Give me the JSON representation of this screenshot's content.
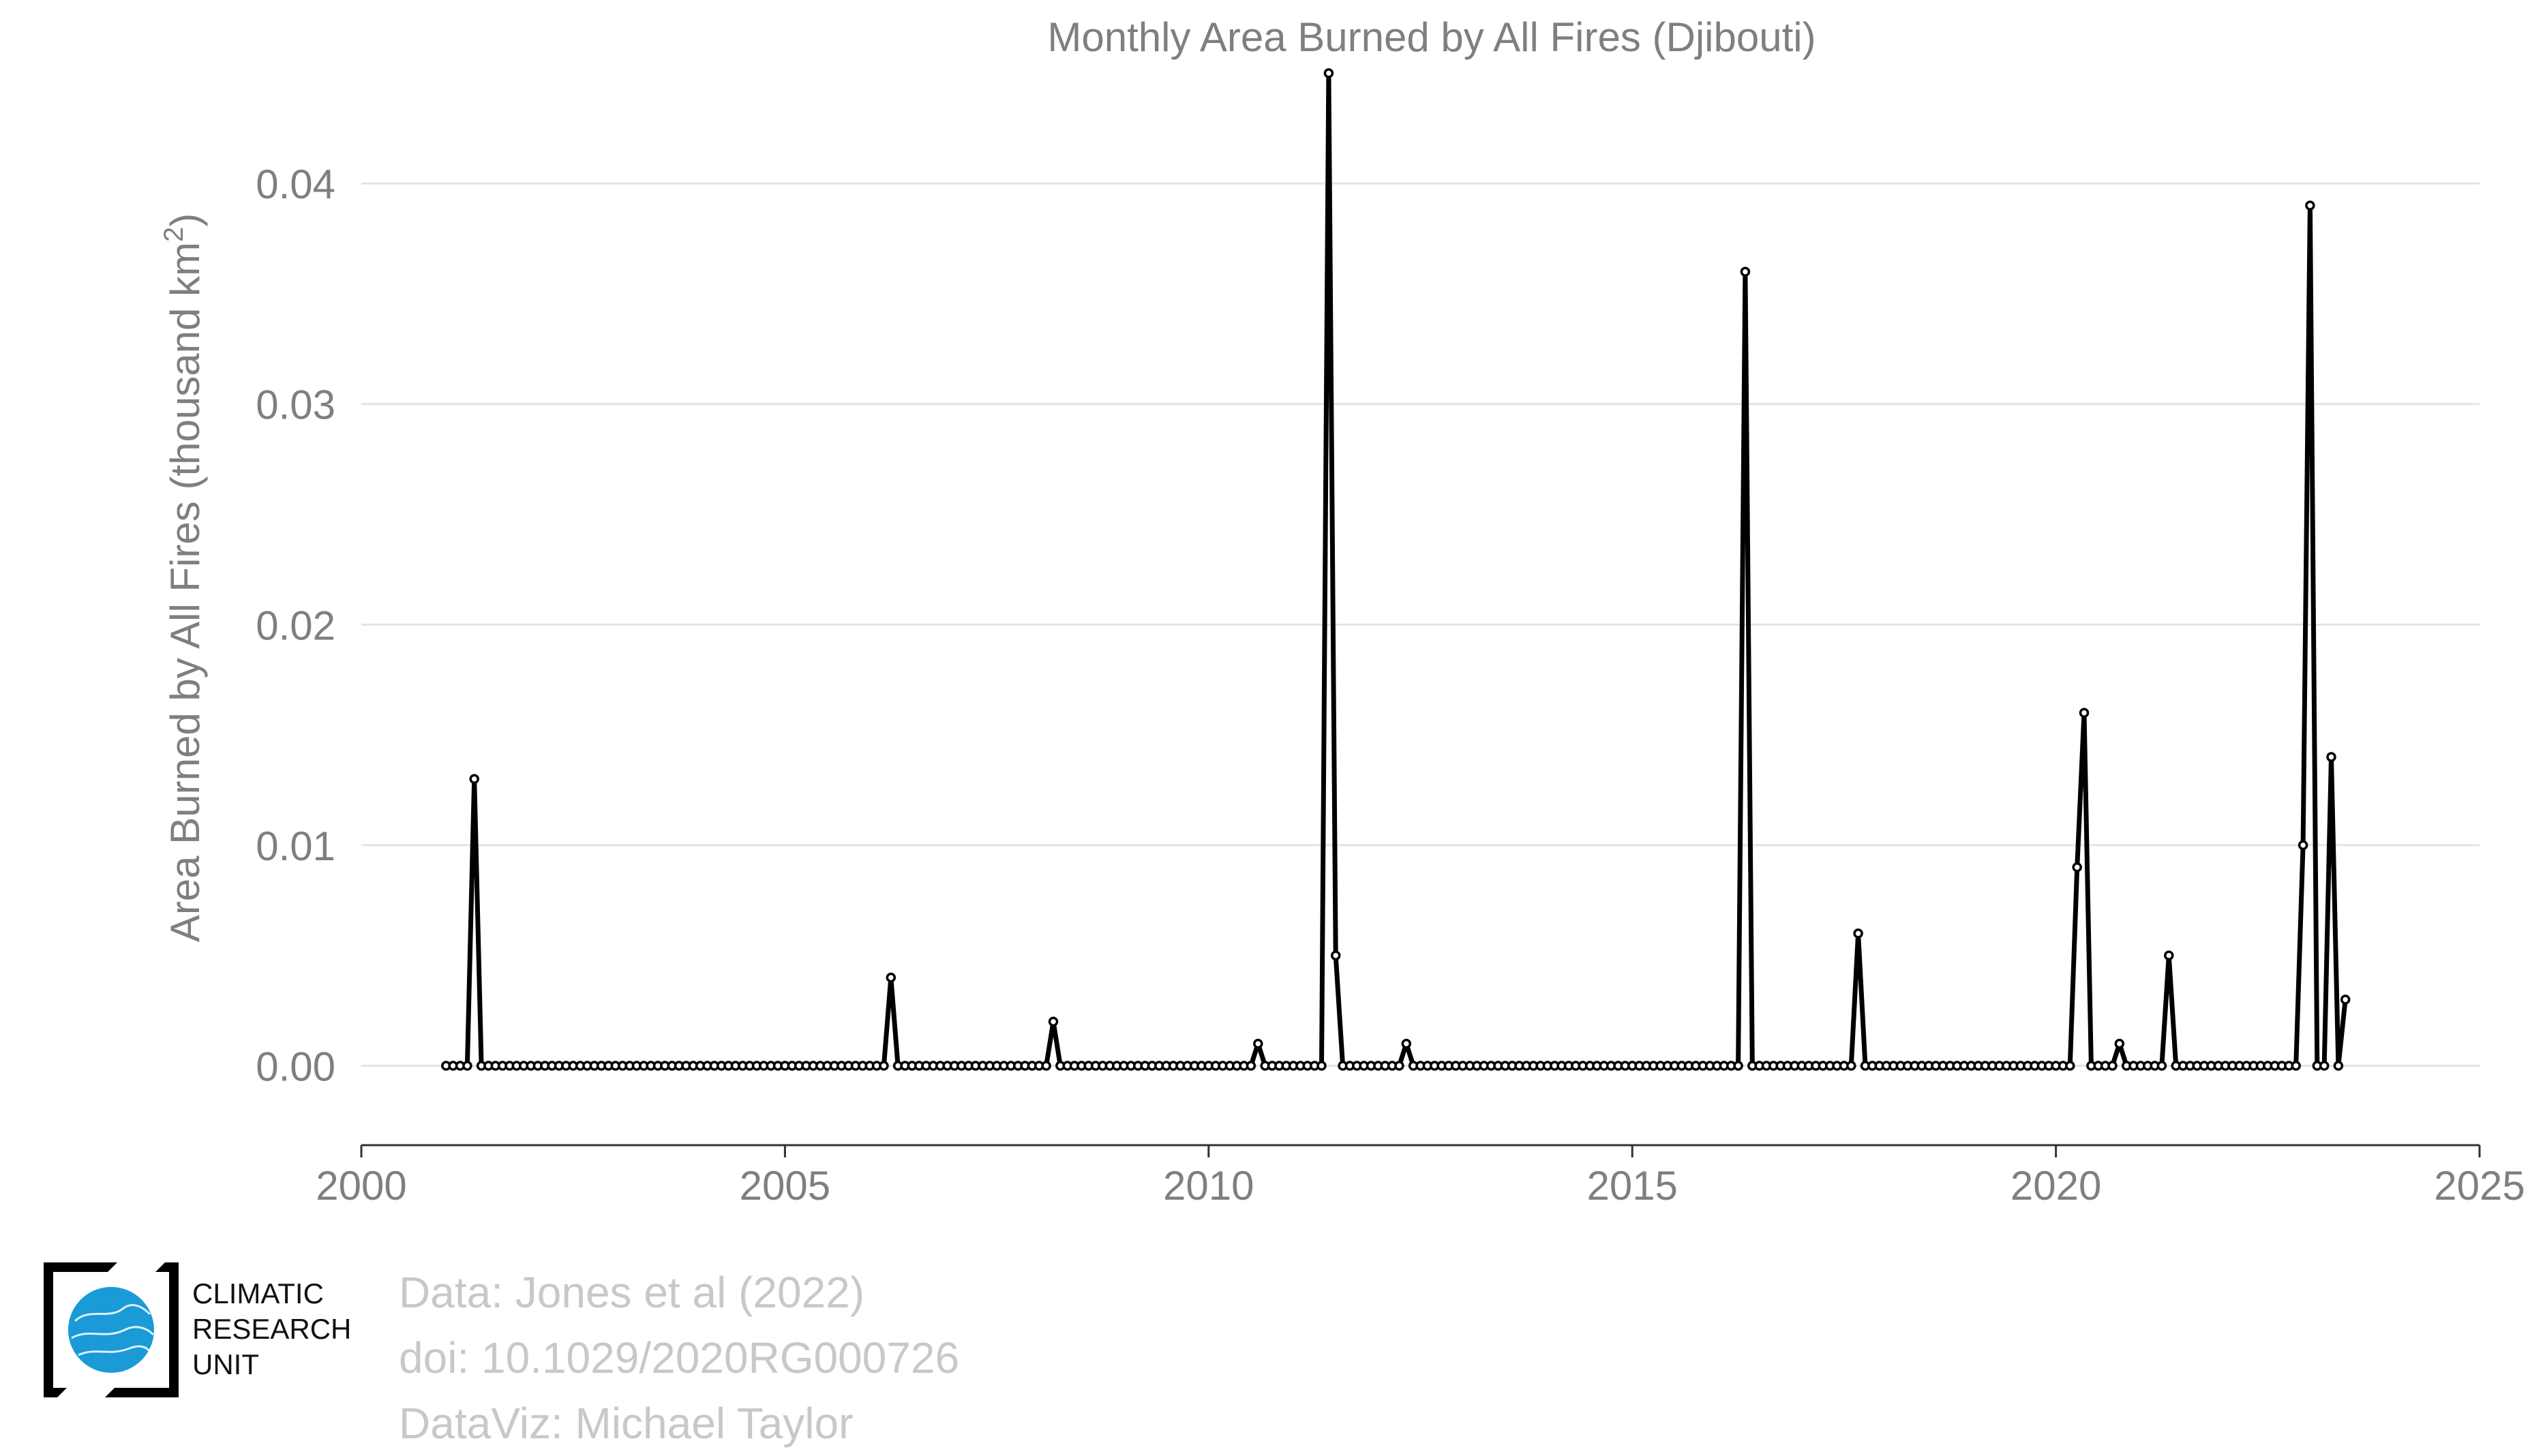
{
  "chart_data": {
    "type": "line",
    "title": "Monthly Area Burned by All Fires (Djibouti)",
    "xlabel": "",
    "ylabel": "Area Burned by All Fires (thousand km",
    "ylabel_superscript": "2",
    "ylabel_close": ")",
    "xlim": [
      2000,
      2025
    ],
    "ylim": [
      -0.0036,
      0.046
    ],
    "x_ticks": [
      "2000",
      "2005",
      "2010",
      "2015",
      "2020",
      "2025"
    ],
    "y_ticks": [
      "0.00",
      "0.01",
      "0.02",
      "0.03",
      "0.04"
    ],
    "grid": "horizontal",
    "start": "2001-01",
    "end": "2023-06",
    "baseline_value": 0,
    "nonzero_months": [
      {
        "month": "2001-05",
        "value": 0.013
      },
      {
        "month": "2006-04",
        "value": 0.004
      },
      {
        "month": "2008-03",
        "value": 0.002
      },
      {
        "month": "2010-08",
        "value": 0.001
      },
      {
        "month": "2011-06",
        "value": 0.045
      },
      {
        "month": "2011-07",
        "value": 0.005
      },
      {
        "month": "2012-05",
        "value": 0.001
      },
      {
        "month": "2016-05",
        "value": 0.036
      },
      {
        "month": "2017-09",
        "value": 0.006
      },
      {
        "month": "2020-04",
        "value": 0.009
      },
      {
        "month": "2020-05",
        "value": 0.016
      },
      {
        "month": "2020-10",
        "value": 0.001
      },
      {
        "month": "2021-05",
        "value": 0.005
      },
      {
        "month": "2022-12",
        "value": 0.01
      },
      {
        "month": "2023-01",
        "value": 0.039
      },
      {
        "month": "2023-04",
        "value": 0.014
      },
      {
        "month": "2023-06",
        "value": 0.003
      }
    ],
    "line_color": "#000000",
    "marker_fill": "#ffffff"
  },
  "credits": {
    "line1": "Data: Jones et al (2022)",
    "line2": "doi: 10.1029/2020RG000726",
    "line3": "DataViz: Michael Taylor"
  },
  "logo": {
    "line1": "CLIMATIC",
    "line2": "RESEARCH",
    "line3": "UNIT",
    "globe_color": "#1a9ad6"
  }
}
